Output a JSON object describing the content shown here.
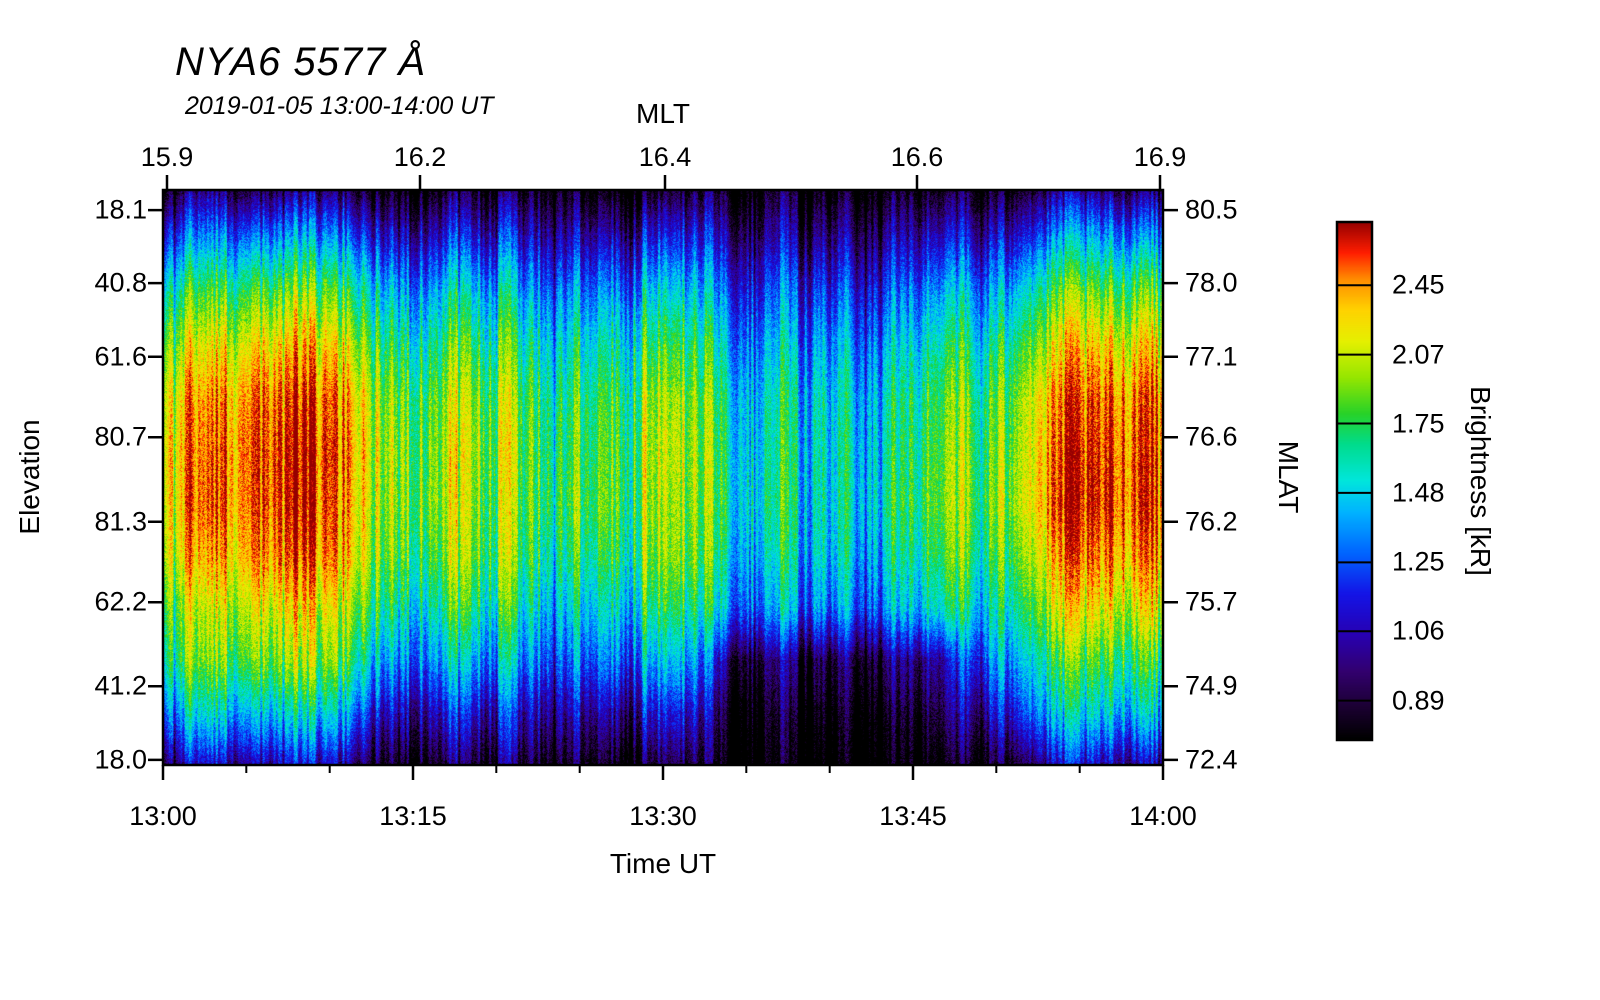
{
  "chart_data": {
    "type": "heatmap",
    "title": "NYA6 5577 Å",
    "subtitle": "2019-01-05 13:00-14:00 UT",
    "axes": {
      "top": {
        "label": "MLT",
        "ticks": [
          {
            "label": "15.9",
            "pos": 0.004
          },
          {
            "label": "16.2",
            "pos": 0.257
          },
          {
            "label": "16.4",
            "pos": 0.502
          },
          {
            "label": "16.6",
            "pos": 0.754
          },
          {
            "label": "16.9",
            "pos": 0.997
          }
        ]
      },
      "bottom": {
        "label": "Time UT",
        "ticks": [
          {
            "label": "13:00",
            "pos": 0.0
          },
          {
            "label": "13:15",
            "pos": 0.25
          },
          {
            "label": "13:30",
            "pos": 0.5
          },
          {
            "label": "13:45",
            "pos": 0.75
          },
          {
            "label": "14:00",
            "pos": 1.0
          }
        ],
        "minor_tick_positions": [
          0.0833,
          0.1667,
          0.3333,
          0.4167,
          0.5833,
          0.6667,
          0.8333,
          0.9167
        ]
      },
      "left": {
        "label": "Elevation",
        "ticks": [
          {
            "label": "18.1",
            "pos": 0.035
          },
          {
            "label": "40.8",
            "pos": 0.162
          },
          {
            "label": "61.6",
            "pos": 0.29
          },
          {
            "label": "80.7",
            "pos": 0.43
          },
          {
            "label": "81.3",
            "pos": 0.577
          },
          {
            "label": "62.2",
            "pos": 0.717
          },
          {
            "label": "41.2",
            "pos": 0.863
          },
          {
            "label": "18.0",
            "pos": 0.991
          }
        ]
      },
      "right": {
        "label": "MLAT",
        "ticks": [
          {
            "label": "80.5",
            "pos": 0.035
          },
          {
            "label": "78.0",
            "pos": 0.162
          },
          {
            "label": "77.1",
            "pos": 0.29
          },
          {
            "label": "76.6",
            "pos": 0.43
          },
          {
            "label": "76.2",
            "pos": 0.577
          },
          {
            "label": "75.7",
            "pos": 0.717
          },
          {
            "label": "74.9",
            "pos": 0.863
          },
          {
            "label": "72.4",
            "pos": 0.991
          }
        ]
      }
    },
    "colorbar": {
      "label": "Brightness [kR]",
      "scale": "log",
      "vmin": 0.8,
      "vmax": 2.86,
      "ticks": [
        {
          "label": "2.45",
          "pos": 0.122
        },
        {
          "label": "2.07",
          "pos": 0.256
        },
        {
          "label": "1.75",
          "pos": 0.389
        },
        {
          "label": "1.48",
          "pos": 0.523
        },
        {
          "label": "1.25",
          "pos": 0.657
        },
        {
          "label": "1.06",
          "pos": 0.79
        },
        {
          "label": "0.89",
          "pos": 0.924
        }
      ],
      "colormap": [
        [
          0.0,
          "#000000"
        ],
        [
          0.06,
          "#1a0030"
        ],
        [
          0.13,
          "#32006e"
        ],
        [
          0.2,
          "#2800b0"
        ],
        [
          0.28,
          "#1414e6"
        ],
        [
          0.36,
          "#0064ff"
        ],
        [
          0.44,
          "#00b4ff"
        ],
        [
          0.5,
          "#00e6dc"
        ],
        [
          0.57,
          "#00dc8c"
        ],
        [
          0.63,
          "#28d228"
        ],
        [
          0.7,
          "#96e600"
        ],
        [
          0.77,
          "#e6f000"
        ],
        [
          0.83,
          "#ffd200"
        ],
        [
          0.89,
          "#ff8c00"
        ],
        [
          0.94,
          "#ff1e00"
        ],
        [
          1.0,
          "#960000"
        ]
      ]
    },
    "grid": {
      "comment": "Coarse brightness grid in kR; rows = elevation bins top(18.1)->bottom(18.0), cols = time 13:00->14:00 at 2.5 min steps",
      "rows": 12,
      "cols": 24,
      "values": [
        [
          0.92,
          0.89,
          0.95,
          0.94,
          0.93,
          0.88,
          0.86,
          0.87,
          0.84,
          0.82,
          0.84,
          0.87,
          0.86,
          0.81,
          0.8,
          0.81,
          0.8,
          0.81,
          0.84,
          0.83,
          0.88,
          0.9,
          0.93,
          0.93
        ],
        [
          1.33,
          1.26,
          1.44,
          1.4,
          1.37,
          1.23,
          1.16,
          1.19,
          1.12,
          1.05,
          1.12,
          1.19,
          1.16,
          1.02,
          0.98,
          1.02,
          0.98,
          1.02,
          1.12,
          1.09,
          1.23,
          1.3,
          1.37,
          1.37
        ],
        [
          1.78,
          1.66,
          1.96,
          1.9,
          1.84,
          1.6,
          1.48,
          1.54,
          1.42,
          1.3,
          1.42,
          1.54,
          1.48,
          1.24,
          1.18,
          1.24,
          1.18,
          1.24,
          1.42,
          1.36,
          1.6,
          1.72,
          1.84,
          1.84
        ],
        [
          2.14,
          1.98,
          2.38,
          2.3,
          2.22,
          1.9,
          1.74,
          1.82,
          1.66,
          1.5,
          1.66,
          1.82,
          1.74,
          1.42,
          1.34,
          1.42,
          1.34,
          1.42,
          1.66,
          1.58,
          1.9,
          2.06,
          2.22,
          2.22
        ],
        [
          2.41,
          2.22,
          2.7,
          2.6,
          2.51,
          2.13,
          1.94,
          2.03,
          1.84,
          1.65,
          1.84,
          2.03,
          1.94,
          1.56,
          1.46,
          1.56,
          1.46,
          1.56,
          1.84,
          1.75,
          2.13,
          2.32,
          2.51,
          2.51
        ],
        [
          2.5,
          2.3,
          2.8,
          2.7,
          2.6,
          2.2,
          2.0,
          2.1,
          1.9,
          1.7,
          1.9,
          2.1,
          2.0,
          1.6,
          1.5,
          1.6,
          1.5,
          1.6,
          1.9,
          1.8,
          2.2,
          2.4,
          2.6,
          2.6
        ],
        [
          2.45,
          2.35,
          2.75,
          2.72,
          2.55,
          2.15,
          2.05,
          2.05,
          1.85,
          1.75,
          1.95,
          2.05,
          1.95,
          1.62,
          1.55,
          1.58,
          1.52,
          1.65,
          1.92,
          1.85,
          2.25,
          2.45,
          2.65,
          2.6
        ],
        [
          2.36,
          2.17,
          2.63,
          2.54,
          2.45,
          2.08,
          1.9,
          1.99,
          1.8,
          1.62,
          1.8,
          1.99,
          1.9,
          1.53,
          1.44,
          1.53,
          1.44,
          1.53,
          1.8,
          1.71,
          2.08,
          2.26,
          2.45,
          2.45
        ],
        [
          2.05,
          1.9,
          2.28,
          2.2,
          2.13,
          1.83,
          1.68,
          1.75,
          1.6,
          1.45,
          1.6,
          1.75,
          1.68,
          1.38,
          1.3,
          1.38,
          1.3,
          1.38,
          1.6,
          1.53,
          1.83,
          1.98,
          2.13,
          2.13
        ],
        [
          1.85,
          1.75,
          2.0,
          1.95,
          1.9,
          1.53,
          1.42,
          1.47,
          1.36,
          1.25,
          1.36,
          1.47,
          1.42,
          0.95,
          0.9,
          0.92,
          0.9,
          0.95,
          1.05,
          1.31,
          1.55,
          1.64,
          1.75,
          1.75
        ],
        [
          1.45,
          1.4,
          1.55,
          1.5,
          1.48,
          1.18,
          1.12,
          1.15,
          1.08,
          1.02,
          1.08,
          1.15,
          1.12,
          0.82,
          0.8,
          0.81,
          0.8,
          0.82,
          0.92,
          1.05,
          1.3,
          1.35,
          1.45,
          1.45
        ],
        [
          1.05,
          1.0,
          1.1,
          1.08,
          1.05,
          0.93,
          0.9,
          0.91,
          0.88,
          0.85,
          0.88,
          0.91,
          0.9,
          0.75,
          0.74,
          0.74,
          0.74,
          0.75,
          0.8,
          0.84,
          0.95,
          1.0,
          1.02,
          1.02
        ]
      ]
    }
  }
}
